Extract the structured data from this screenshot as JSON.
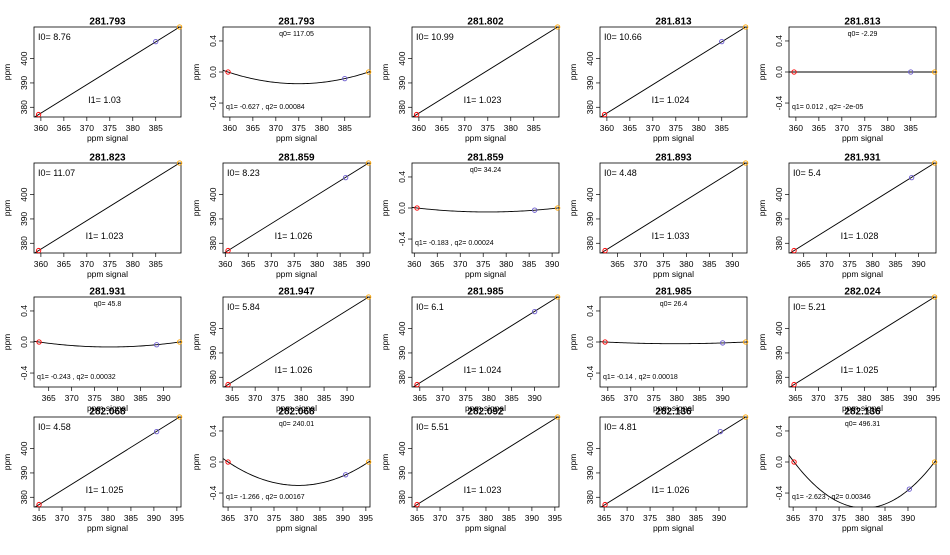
{
  "x_axis_label": "ppm signal",
  "y_axis_label": "ppm",
  "point_colors": {
    "start": "#ff0000",
    "middle": "#6a5acd",
    "end": "#ffa500"
  },
  "chart_data": [
    {
      "type": "line",
      "fit": "linear",
      "title": "281.793",
      "xlim": [
        358.5,
        390.5
      ],
      "ylim": [
        376,
        413
      ],
      "xticks": [
        360,
        365,
        370,
        375,
        380,
        385
      ],
      "yticks": [
        380,
        390,
        400
      ],
      "points": [
        [
          359.5,
          377
        ],
        [
          385.0,
          407
        ],
        [
          390.2,
          413
        ]
      ],
      "i0": "8.76",
      "i1": "1.03"
    },
    {
      "type": "line",
      "fit": "quadratic",
      "title": "281.793",
      "xlim": [
        358.5,
        390.5
      ],
      "ylim": [
        -0.58,
        0.58
      ],
      "xticks": [
        360,
        365,
        370,
        375,
        380,
        385
      ],
      "yticks": [
        "0.4",
        "0.0",
        "-0.4"
      ],
      "q0": "117.05",
      "q1": "-0.627",
      "q2": "0.00084",
      "points": [
        [
          359.6,
          0.0
        ],
        [
          385.0,
          -0.085
        ],
        [
          390.2,
          0.0
        ]
      ]
    },
    {
      "type": "line",
      "fit": "linear",
      "title": "281.802",
      "xlim": [
        358.5,
        390.5
      ],
      "ylim": [
        376,
        413
      ],
      "xticks": [
        360,
        365,
        370,
        375,
        380,
        385
      ],
      "yticks": [
        380,
        390,
        400
      ],
      "points": [
        [
          359.5,
          377
        ],
        [
          390.2,
          413
        ]
      ],
      "i0": "10.99",
      "i1": "1.023"
    },
    {
      "type": "line",
      "fit": "linear",
      "title": "281.813",
      "xlim": [
        358.5,
        390.5
      ],
      "ylim": [
        376,
        413
      ],
      "xticks": [
        360,
        365,
        370,
        375,
        380,
        385
      ],
      "yticks": [
        380,
        390,
        400
      ],
      "points": [
        [
          359.5,
          377
        ],
        [
          385.0,
          407
        ],
        [
          390.2,
          413
        ]
      ],
      "i0": "10.66",
      "i1": "1.024"
    },
    {
      "type": "line",
      "fit": "quadratic",
      "title": "281.813",
      "xlim": [
        358.5,
        390.5
      ],
      "ylim": [
        -0.58,
        0.58
      ],
      "xticks": [
        360,
        365,
        370,
        375,
        380,
        385
      ],
      "yticks": [
        "0.4",
        "0.0",
        "-0.4"
      ],
      "q0": "-2.29",
      "q1": "0.012",
      "q2": "-2e-05",
      "points": [
        [
          359.6,
          0.0
        ],
        [
          385.0,
          0.0
        ],
        [
          390.2,
          0.0
        ]
      ]
    },
    {
      "type": "line",
      "fit": "linear",
      "title": "281.823",
      "xlim": [
        358.5,
        390.5
      ],
      "ylim": [
        376,
        413
      ],
      "xticks": [
        360,
        365,
        370,
        375,
        380,
        385
      ],
      "yticks": [
        380,
        390,
        400
      ],
      "points": [
        [
          359.5,
          377
        ],
        [
          390.2,
          413
        ]
      ],
      "i0": "11.07",
      "i1": "1.023"
    },
    {
      "type": "line",
      "fit": "linear",
      "title": "281.859",
      "xlim": [
        359.5,
        391.5
      ],
      "ylim": [
        376,
        413
      ],
      "xticks": [
        360,
        365,
        370,
        375,
        380,
        385,
        390
      ],
      "yticks": [
        380,
        390,
        400
      ],
      "points": [
        [
          360.6,
          377
        ],
        [
          386.2,
          407
        ],
        [
          391.2,
          413
        ]
      ],
      "i0": "8.23",
      "i1": "1.026"
    },
    {
      "type": "line",
      "fit": "quadratic",
      "title": "281.859",
      "xlim": [
        359.5,
        391.5
      ],
      "ylim": [
        -0.58,
        0.58
      ],
      "xticks": [
        360,
        365,
        370,
        375,
        380,
        385,
        390
      ],
      "yticks": [
        "0.4",
        "0.0",
        "-0.4"
      ],
      "q0": "34.24",
      "q1": "-0.183",
      "q2": "0.00024",
      "points": [
        [
          360.6,
          0.0
        ],
        [
          386.2,
          -0.028
        ],
        [
          391.2,
          0.0
        ]
      ]
    },
    {
      "type": "line",
      "fit": "linear",
      "title": "281.893",
      "xlim": [
        361.2,
        393.2
      ],
      "ylim": [
        376,
        413
      ],
      "xticks": [
        365,
        370,
        375,
        380,
        385,
        390
      ],
      "yticks": [
        380,
        390,
        400
      ],
      "points": [
        [
          362.3,
          377
        ],
        [
          392.9,
          413
        ]
      ],
      "i0": "4.48",
      "i1": "1.033"
    },
    {
      "type": "line",
      "fit": "linear",
      "title": "281.931",
      "xlim": [
        361.8,
        393.8
      ],
      "ylim": [
        376,
        413
      ],
      "xticks": [
        365,
        370,
        375,
        380,
        385,
        390
      ],
      "yticks": [
        380,
        390,
        400
      ],
      "points": [
        [
          362.9,
          377
        ],
        [
          388.5,
          407
        ],
        [
          393.5,
          413
        ]
      ],
      "i0": "5.4",
      "i1": "1.028"
    },
    {
      "type": "line",
      "fit": "quadratic",
      "title": "281.931",
      "xlim": [
        361.8,
        393.8
      ],
      "ylim": [
        -0.58,
        0.58
      ],
      "xticks": [
        365,
        370,
        375,
        380,
        385,
        390
      ],
      "yticks": [
        "0.4",
        "0.0",
        "-0.4"
      ],
      "q0": "45.8",
      "q1": "-0.243",
      "q2": "0.00032",
      "points": [
        [
          362.9,
          0.0
        ],
        [
          388.5,
          -0.035
        ],
        [
          393.5,
          0.0
        ]
      ]
    },
    {
      "type": "line",
      "fit": "linear",
      "title": "281.947",
      "xlim": [
        363.0,
        395.0
      ],
      "ylim": [
        376,
        413
      ],
      "xticks": [
        365,
        370,
        375,
        380,
        385,
        390
      ],
      "yticks": [
        380,
        390,
        400
      ],
      "points": [
        [
          364.1,
          377
        ],
        [
          394.7,
          413
        ]
      ],
      "i0": "5.84",
      "i1": "1.026"
    },
    {
      "type": "line",
      "fit": "linear",
      "title": "281.985",
      "xlim": [
        363.3,
        395.3
      ],
      "ylim": [
        376,
        413
      ],
      "xticks": [
        365,
        370,
        375,
        380,
        385,
        390
      ],
      "yticks": [
        380,
        390,
        400
      ],
      "points": [
        [
          364.4,
          377
        ],
        [
          390.0,
          407
        ],
        [
          395.0,
          413
        ]
      ],
      "i0": "6.1",
      "i1": "1.024"
    },
    {
      "type": "line",
      "fit": "quadratic",
      "title": "281.985",
      "xlim": [
        363.3,
        395.3
      ],
      "ylim": [
        -0.58,
        0.58
      ],
      "xticks": [
        365,
        370,
        375,
        380,
        385,
        390
      ],
      "yticks": [
        "0.4",
        "0.0",
        "-0.4"
      ],
      "q0": "26.4",
      "q1": "-0.14",
      "q2": "0.00018",
      "points": [
        [
          364.4,
          0.0
        ],
        [
          390.0,
          -0.012
        ],
        [
          395.0,
          0.0
        ]
      ]
    },
    {
      "type": "line",
      "fit": "linear",
      "title": "282.024",
      "xlim": [
        363.6,
        395.6
      ],
      "ylim": [
        376,
        413
      ],
      "xticks": [
        365,
        370,
        375,
        380,
        385,
        390,
        395
      ],
      "yticks": [
        380,
        390,
        400
      ],
      "points": [
        [
          364.7,
          377
        ],
        [
          395.3,
          413
        ]
      ],
      "i0": "5.21",
      "i1": "1.025"
    },
    {
      "type": "line",
      "fit": "linear",
      "title": "282.068",
      "xlim": [
        363.9,
        395.9
      ],
      "ylim": [
        376,
        413
      ],
      "xticks": [
        365,
        370,
        375,
        380,
        385,
        390,
        395
      ],
      "yticks": [
        380,
        390,
        400
      ],
      "points": [
        [
          365.0,
          377
        ],
        [
          390.6,
          407
        ],
        [
          395.6,
          413
        ]
      ],
      "i0": "4.58",
      "i1": "1.025"
    },
    {
      "type": "line",
      "fit": "quadratic",
      "title": "282.068",
      "xlim": [
        363.9,
        395.9
      ],
      "ylim": [
        -0.58,
        0.58
      ],
      "xticks": [
        365,
        370,
        375,
        380,
        385,
        390,
        395
      ],
      "yticks": [
        "0.4",
        "0.0",
        "-0.4"
      ],
      "q0": "240.01",
      "q1": "-1.266",
      "q2": "0.00167",
      "points": [
        [
          365.0,
          0.0
        ],
        [
          390.6,
          -0.165
        ],
        [
          395.6,
          0.0
        ]
      ]
    },
    {
      "type": "line",
      "fit": "linear",
      "title": "282.092",
      "xlim": [
        363.9,
        395.9
      ],
      "ylim": [
        376,
        413
      ],
      "xticks": [
        365,
        370,
        375,
        380,
        385,
        390,
        395
      ],
      "yticks": [
        380,
        390,
        400
      ],
      "points": [
        [
          365.0,
          377
        ],
        [
          395.6,
          413
        ]
      ],
      "i0": "5.51",
      "i1": "1.023"
    },
    {
      "type": "line",
      "fit": "linear",
      "title": "282.136",
      "xlim": [
        364.1,
        396.1
      ],
      "ylim": [
        376,
        413
      ],
      "xticks": [
        365,
        370,
        375,
        380,
        385,
        390
      ],
      "yticks": [
        380,
        390,
        400
      ],
      "points": [
        [
          365.2,
          377
        ],
        [
          390.3,
          407
        ],
        [
          395.8,
          413
        ]
      ],
      "i0": "4.81",
      "i1": "1.026"
    },
    {
      "type": "line",
      "fit": "quadratic",
      "title": "282.136",
      "xlim": [
        364.1,
        396.1
      ],
      "ylim": [
        -0.58,
        0.58
      ],
      "xticks": [
        365,
        370,
        375,
        380,
        385,
        390
      ],
      "yticks": [
        "0.4",
        "0.0",
        "-0.4"
      ],
      "q0": "496.31",
      "q1": "-2.623",
      "q2": "0.00346",
      "points": [
        [
          365.2,
          0.0
        ],
        [
          390.3,
          -0.35
        ],
        [
          395.8,
          0.0
        ]
      ]
    }
  ]
}
